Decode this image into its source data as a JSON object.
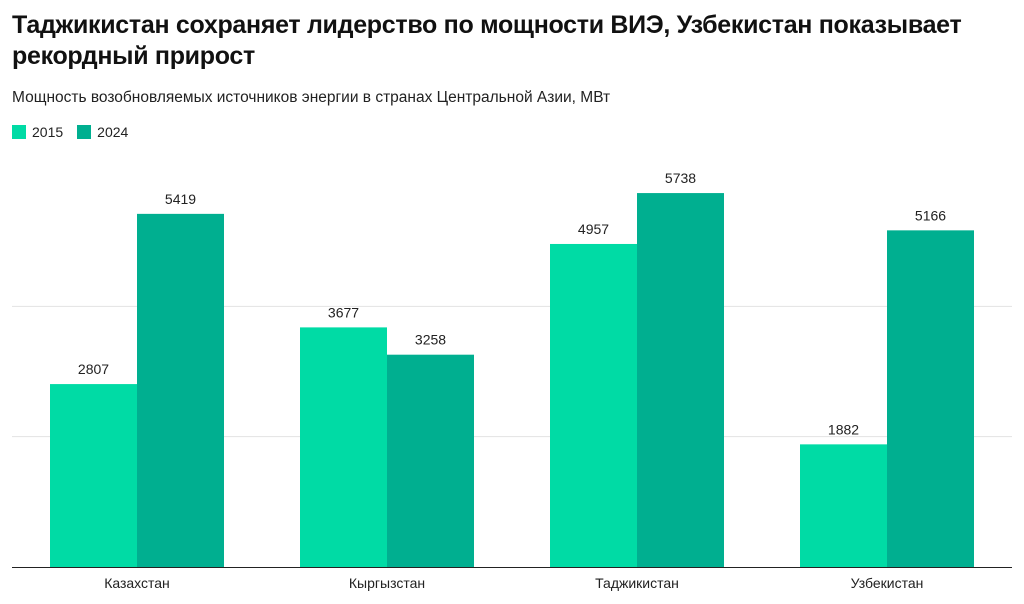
{
  "header": {
    "title": "Таджикистан сохраняет лидерство по мощности ВИЭ, Узбекистан показывает рекордный прирост",
    "subtitle": "Мощность возобновляемых источников энергии в странах Центральной Азии, МВт"
  },
  "chart_data": {
    "type": "bar",
    "categories": [
      "Казахстан",
      "Кыргызстан",
      "Таджикистан",
      "Узбекистан"
    ],
    "series": [
      {
        "name": "2015",
        "color": "#00DBA5",
        "values": [
          2807,
          3677,
          4957,
          1882
        ]
      },
      {
        "name": "2024",
        "color": "#00AF90",
        "values": [
          5419,
          3258,
          5738,
          5166
        ]
      }
    ],
    "ylim": [
      0,
      6000
    ],
    "gridlines": [
      2000,
      4000
    ],
    "grid": true,
    "legend": "top-left",
    "data_labels": true
  }
}
